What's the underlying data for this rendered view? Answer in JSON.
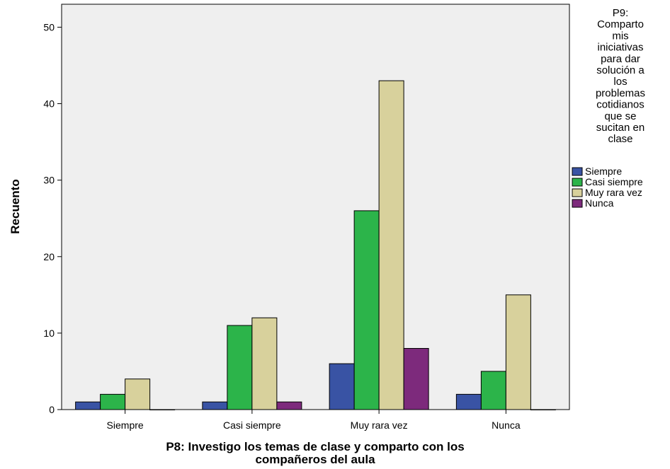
{
  "chart_data": {
    "type": "bar",
    "categories": [
      "Siempre",
      "Casi siempre",
      "Muy rara vez",
      "Nunca"
    ],
    "xlabel_lines": [
      "P8: Investigo los temas de clase y comparto con los",
      "compañeros del aula"
    ],
    "ylabel": "Recuento",
    "ylim": [
      0,
      53
    ],
    "yticks": [
      0,
      10,
      20,
      30,
      40,
      50
    ],
    "legend_title_lines": [
      "P9:",
      "Comparto",
      "mis",
      "iniciativas",
      "para dar",
      "solución a",
      "los",
      "problemas",
      "cotidianos",
      "que se",
      "sucitan en",
      "clase"
    ],
    "legend_position": "right",
    "grid": false,
    "series": [
      {
        "name": "Siempre",
        "color": "#3953a4",
        "values": [
          1,
          1,
          6,
          2
        ]
      },
      {
        "name": "Casi siempre",
        "color": "#2cb44a",
        "values": [
          2,
          11,
          26,
          5
        ]
      },
      {
        "name": "Muy rara vez",
        "color": "#d8d19c",
        "values": [
          4,
          12,
          43,
          15
        ]
      },
      {
        "name": "Nunca",
        "color": "#7d2a7c",
        "values": [
          0,
          1,
          8,
          0
        ]
      }
    ],
    "plot_background": "#efefef"
  }
}
